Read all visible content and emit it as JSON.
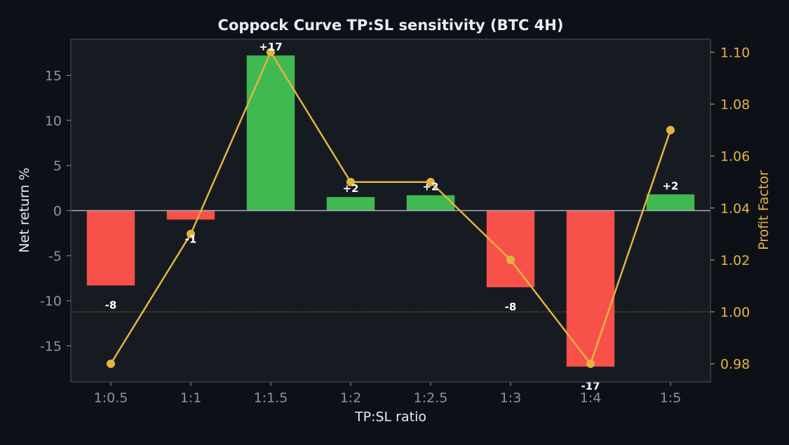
{
  "colors": {
    "background": "#0d1117",
    "plot_background": "#161b22",
    "frame": "#3a3f47",
    "text": "#e6edf3",
    "tick_text": "#8b949e",
    "positive_bar": "#3fb950",
    "negative_bar": "#f85149",
    "profit_factor": "#e3b341",
    "zero_line": "#a8b0bb"
  },
  "chart_data": {
    "type": "bar",
    "title": "Coppock Curve TP:SL sensitivity (BTC 4H)",
    "xlabel": "TP:SL ratio",
    "ylabel": "Net return %",
    "y2label": "Profit Factor",
    "categories": [
      "1:0.5",
      "1:1",
      "1:1.5",
      "1:2",
      "1:2.5",
      "1:3",
      "1:4",
      "1:5"
    ],
    "series": [
      {
        "axis": "left",
        "type": "bar",
        "values": [
          -8.3,
          -1.0,
          17.2,
          1.5,
          1.7,
          -8.5,
          -17.3,
          1.8
        ],
        "labels": [
          "-8",
          "-1",
          "+17",
          "+2",
          "+2",
          "-8",
          "-17",
          "+2"
        ]
      },
      {
        "axis": "right",
        "type": "line",
        "values": [
          0.98,
          1.03,
          1.1,
          1.05,
          1.05,
          1.02,
          0.98,
          1.07
        ]
      }
    ],
    "ylim": [
      -19,
      19
    ],
    "yticks": [
      15,
      10,
      5,
      0,
      -5,
      -10,
      -15
    ],
    "y2lim": [
      0.973,
      1.105
    ],
    "y2ticks": [
      0.98,
      1.0,
      1.02,
      1.04,
      1.06,
      1.08,
      1.1
    ],
    "y2ticklabels": [
      "0.98",
      "1.00",
      "1.02",
      "1.04",
      "1.06",
      "1.08",
      "1.10"
    ],
    "reference_line": {
      "axis": "right",
      "value": 1.0,
      "style": "dotted"
    },
    "grid": false,
    "legend": "none"
  }
}
